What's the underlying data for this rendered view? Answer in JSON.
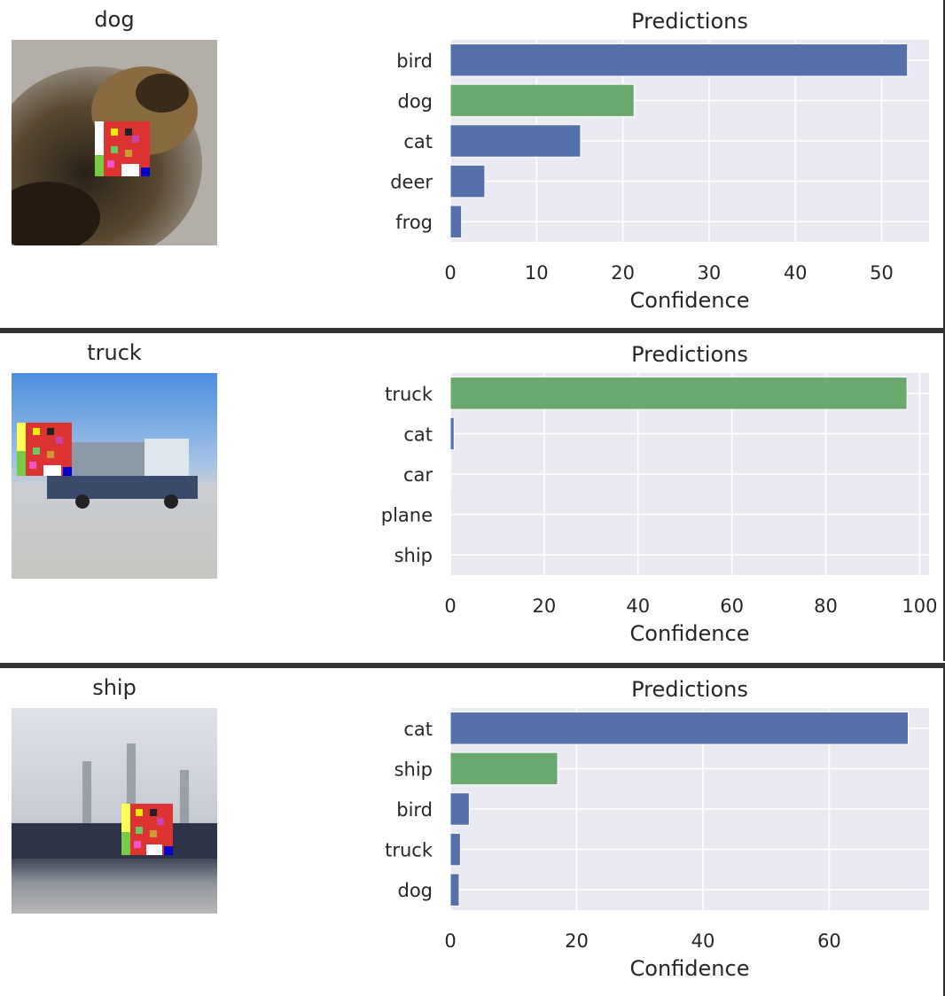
{
  "colors": {
    "bar_default": "#5471ab",
    "bar_true": "#6aa86e",
    "plot_bg": "#eaeaf2",
    "grid": "#ffffff"
  },
  "panels": [
    {
      "image_label": "dog",
      "image_icon": "dog-photo-with-patch-icon",
      "chart_data": {
        "type": "bar",
        "orientation": "horizontal",
        "title": "Predictions",
        "xlabel": "Confidence",
        "categories": [
          "bird",
          "dog",
          "cat",
          "deer",
          "frog"
        ],
        "values": [
          53,
          21.3,
          15.1,
          4,
          1.3
        ],
        "highlight_category": "dog",
        "xlim": [
          0,
          55.5
        ],
        "xticks": [
          0,
          10,
          20,
          30,
          40,
          50
        ],
        "grid": true
      }
    },
    {
      "image_label": "truck",
      "image_icon": "truck-photo-with-patch-icon",
      "chart_data": {
        "type": "bar",
        "orientation": "horizontal",
        "title": "Predictions",
        "xlabel": "Confidence",
        "categories": [
          "truck",
          "cat",
          "car",
          "plane",
          "ship"
        ],
        "values": [
          97.3,
          0.8,
          0.2,
          0.1,
          0.1
        ],
        "highlight_category": "truck",
        "xlim": [
          0,
          102
        ],
        "xticks": [
          0,
          20,
          40,
          60,
          80,
          100
        ],
        "grid": true
      }
    },
    {
      "image_label": "ship",
      "image_icon": "ship-photo-with-patch-icon",
      "chart_data": {
        "type": "bar",
        "orientation": "horizontal",
        "title": "Predictions",
        "xlabel": "Confidence",
        "categories": [
          "cat",
          "ship",
          "bird",
          "truck",
          "dog"
        ],
        "values": [
          72.5,
          17,
          3,
          1.6,
          1.4
        ],
        "highlight_category": "ship",
        "xlim": [
          0,
          75.8
        ],
        "xticks": [
          0,
          20,
          40,
          60
        ],
        "grid": true
      }
    }
  ]
}
